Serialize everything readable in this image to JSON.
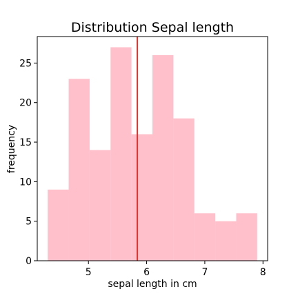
{
  "chart_data": {
    "type": "bar",
    "title": "Distribution Sepal length",
    "xlabel": "sepal length in cm",
    "ylabel": "frequency",
    "xlim": [
      4.12,
      8.08
    ],
    "ylim": [
      0,
      28.35
    ],
    "x_ticks": [
      5,
      6,
      7,
      8
    ],
    "y_ticks": [
      0,
      5,
      10,
      15,
      20,
      25
    ],
    "bins": [
      {
        "start": 4.3,
        "end": 4.66,
        "count": 9
      },
      {
        "start": 4.66,
        "end": 5.02,
        "count": 23
      },
      {
        "start": 5.02,
        "end": 5.38,
        "count": 14
      },
      {
        "start": 5.38,
        "end": 5.74,
        "count": 27
      },
      {
        "start": 5.74,
        "end": 6.1,
        "count": 16
      },
      {
        "start": 6.1,
        "end": 6.46,
        "count": 26
      },
      {
        "start": 6.46,
        "end": 6.82,
        "count": 18
      },
      {
        "start": 6.82,
        "end": 7.18,
        "count": 6
      },
      {
        "start": 7.18,
        "end": 7.54,
        "count": 5
      },
      {
        "start": 7.54,
        "end": 7.9,
        "count": 6
      }
    ],
    "mean_line": {
      "x": 5.84
    },
    "grid": false,
    "colors": {
      "bar": "#ffc0cb",
      "mean_line": "#e8312b",
      "axis": "#000000"
    }
  }
}
